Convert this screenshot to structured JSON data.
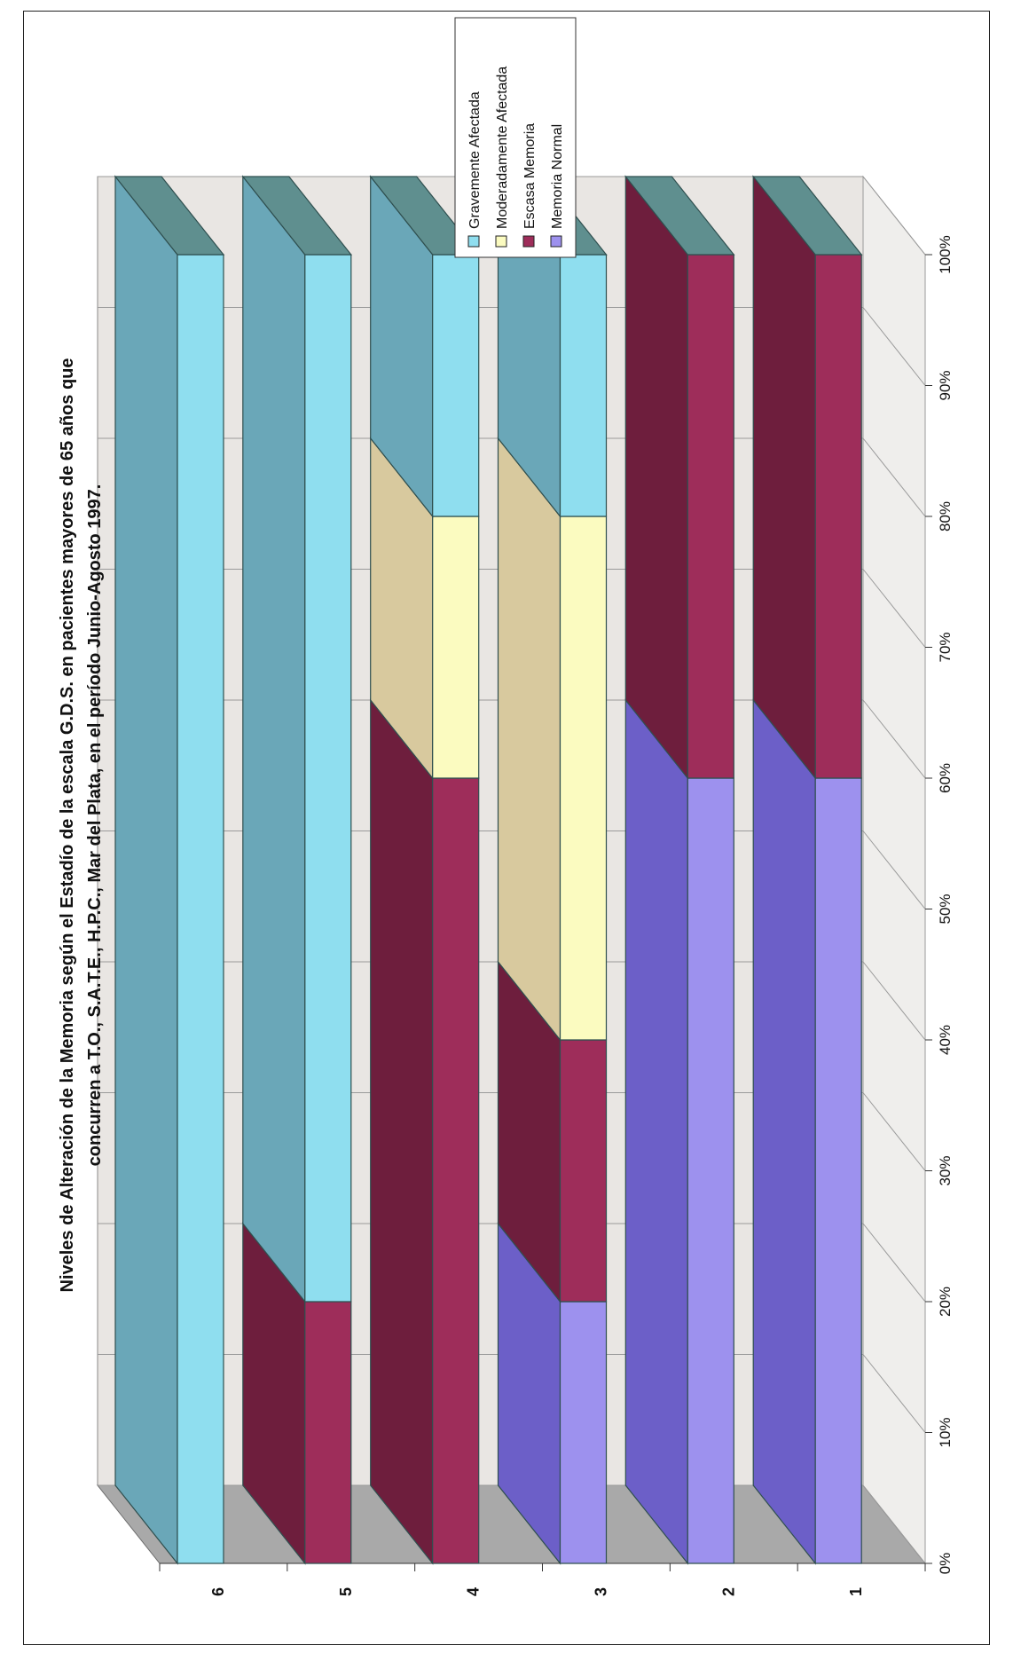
{
  "chart_data": {
    "type": "bar",
    "stacked": true,
    "orientation": "horizontal-3d-100percent",
    "title": "Niveles de Alteración de la Memoria según el Estadío de la escala G.D.S. en pacientes mayores de 65 años que",
    "subtitle": "concurren a T.O., S.A.T.E., H.P.C., Mar del Plata, en el período Junio-Agosto 1997.",
    "xlabel": "",
    "ylabel": "",
    "xlim": [
      0,
      100
    ],
    "x_ticks": [
      "0%",
      "10%",
      "20%",
      "30%",
      "40%",
      "50%",
      "60%",
      "70%",
      "80%",
      "90%",
      "100%"
    ],
    "categories": [
      "1",
      "2",
      "3",
      "4",
      "5",
      "6"
    ],
    "series": [
      {
        "name": "Memoria Normal",
        "values": [
          60,
          60,
          20,
          0,
          0,
          0
        ],
        "color": "#9d91ee",
        "side_color": "#6c5fc8"
      },
      {
        "name": "Escasa Memoria",
        "values": [
          40,
          40,
          20,
          60,
          20,
          0
        ],
        "color": "#9e2d5a",
        "side_color": "#6e1e3d"
      },
      {
        "name": "Moderadamente Afectada",
        "values": [
          0,
          0,
          40,
          20,
          0,
          0
        ],
        "color": "#fbfbc0",
        "side_color": "#d8c99e"
      },
      {
        "name": "Gravemente Afectada",
        "values": [
          0,
          0,
          20,
          20,
          80,
          100
        ],
        "color": "#8fdeef",
        "side_color": "#6aa7b8"
      }
    ],
    "legend_position": "top-right",
    "grid": true
  }
}
